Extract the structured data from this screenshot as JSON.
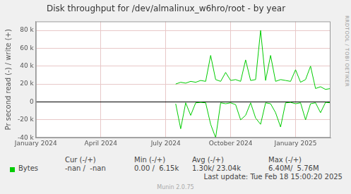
{
  "chart_data": {
    "type": "line",
    "title": "Disk throughput for /dev/almalinux_w6hro/root - by year",
    "y_label": "Pr second read (-) / write (+)",
    "categories": [
      "January 2024",
      null,
      null,
      null,
      null,
      null,
      null,
      null,
      null,
      null,
      null,
      null,
      null,
      "April 2024",
      null,
      null,
      null,
      null,
      null,
      null,
      null,
      null,
      null,
      null,
      null,
      null,
      "July 2024",
      null,
      null,
      null,
      null,
      null,
      null,
      null,
      null,
      null,
      null,
      null,
      null,
      "October 2024",
      null,
      null,
      null,
      null,
      null,
      null,
      null,
      null,
      null,
      null,
      null,
      null,
      "January 2025",
      null,
      null,
      null,
      null,
      null,
      null,
      null
    ],
    "series": [
      {
        "name": "Bytes",
        "color": "#00cc00",
        "write": [
          null,
          null,
          null,
          null,
          null,
          null,
          null,
          null,
          null,
          null,
          null,
          null,
          null,
          null,
          null,
          null,
          null,
          null,
          null,
          null,
          null,
          null,
          null,
          null,
          null,
          null,
          null,
          null,
          20000,
          22000,
          21000,
          23000,
          22000,
          24000,
          23000,
          52000,
          25000,
          23000,
          33000,
          24000,
          25000,
          23000,
          47000,
          24000,
          25000,
          80000,
          24000,
          52000,
          23000,
          25000,
          24000,
          23000,
          36000,
          22000,
          25000,
          40000,
          15000,
          17000,
          14000,
          15000
        ],
        "read": [
          null,
          null,
          null,
          null,
          null,
          null,
          null,
          null,
          null,
          null,
          null,
          null,
          null,
          null,
          null,
          null,
          null,
          null,
          null,
          null,
          null,
          null,
          null,
          null,
          null,
          null,
          null,
          null,
          -2000,
          -30000,
          -1000,
          -15000,
          -1000,
          -500,
          -1000,
          -25000,
          -40000,
          -1000,
          -2000,
          -1000,
          -3000,
          -20000,
          -15000,
          -1000,
          -18000,
          -25000,
          -1000,
          -2000,
          -12000,
          -28000,
          -1000,
          -500,
          -2000,
          -1000,
          -20000,
          -2000,
          -1000,
          -12000,
          -500,
          -1000
        ]
      }
    ],
    "ylim": [
      -40000,
      90000
    ],
    "yticks": [
      {
        "value": -40000,
        "label": "-40 k"
      },
      {
        "value": -20000,
        "label": "-20 k"
      },
      0,
      {
        "value": 20000,
        "label": "20 k"
      },
      {
        "value": 40000,
        "label": "40 k"
      },
      {
        "value": 60000,
        "label": "60 k"
      },
      {
        "value": 80000,
        "label": "80 k"
      }
    ],
    "grid": true,
    "legend_table": {
      "headers": [
        "Cur (-/+)",
        "Min (-/+)",
        "Avg (-/+)",
        "Max (-/+)"
      ],
      "cells": [
        "-nan /  -nan",
        "0.00 /  6.15k",
        "1.30k/ 23.04k",
        "6.40M/  5.76M"
      ]
    },
    "last_update": "Last update: Tue Feb 18 15:00:20 2025",
    "credit": "Munin 2.0.75",
    "watermark": "RRDTOOL / TOBI OETIKER"
  }
}
